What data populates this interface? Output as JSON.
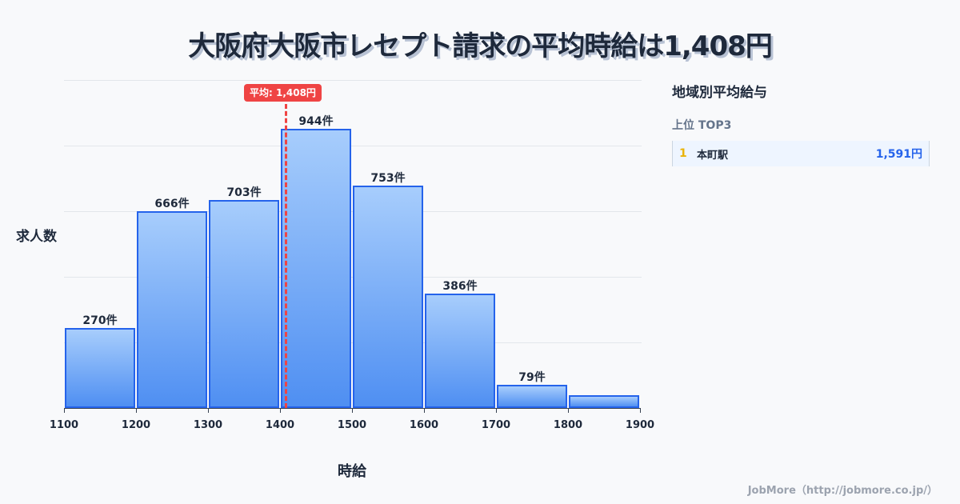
{
  "title": "大阪府大阪市レセプト請求の平均時給は1,408円",
  "chart_data": {
    "type": "bar",
    "title": "大阪府大阪市レセプト請求の平均時給は1,408円",
    "xlabel": "時給",
    "ylabel": "求人数",
    "bins": [
      [
        1100,
        1200
      ],
      [
        1200,
        1300
      ],
      [
        1300,
        1400
      ],
      [
        1400,
        1500
      ],
      [
        1500,
        1600
      ],
      [
        1600,
        1700
      ],
      [
        1700,
        1800
      ],
      [
        1800,
        1900
      ]
    ],
    "categories": [
      "1100-1200",
      "1200-1300",
      "1300-1400",
      "1400-1500",
      "1500-1600",
      "1600-1700",
      "1700-1800",
      "1800-1900"
    ],
    "values": [
      270,
      666,
      703,
      944,
      753,
      386,
      79,
      43
    ],
    "value_labels": [
      "270件",
      "666件",
      "703件",
      "944件",
      "753件",
      "386件",
      "79件",
      ""
    ],
    "x_ticks": [
      "1100",
      "1200",
      "1300",
      "1400",
      "1500",
      "1600",
      "1700",
      "1800",
      "1900"
    ],
    "xlim": [
      1100,
      1900
    ],
    "ylim": [
      0,
      1110
    ],
    "grid": true,
    "annotations": [
      {
        "type": "vline",
        "x": 1408,
        "label": "平均: 1,408円",
        "color": "#ef4444"
      }
    ],
    "bar_color": "#4f8ff2",
    "bar_border": "#2563eb"
  },
  "average_badge": "平均: 1,408円",
  "sidebar": {
    "title": "地域別平均給与",
    "subtitle": "上位 TOP3",
    "ranks": [
      {
        "rank": "1",
        "name": "本町駅",
        "value": "1,591円"
      }
    ]
  },
  "footer": "JobMore（http://jobmore.co.jp/）"
}
